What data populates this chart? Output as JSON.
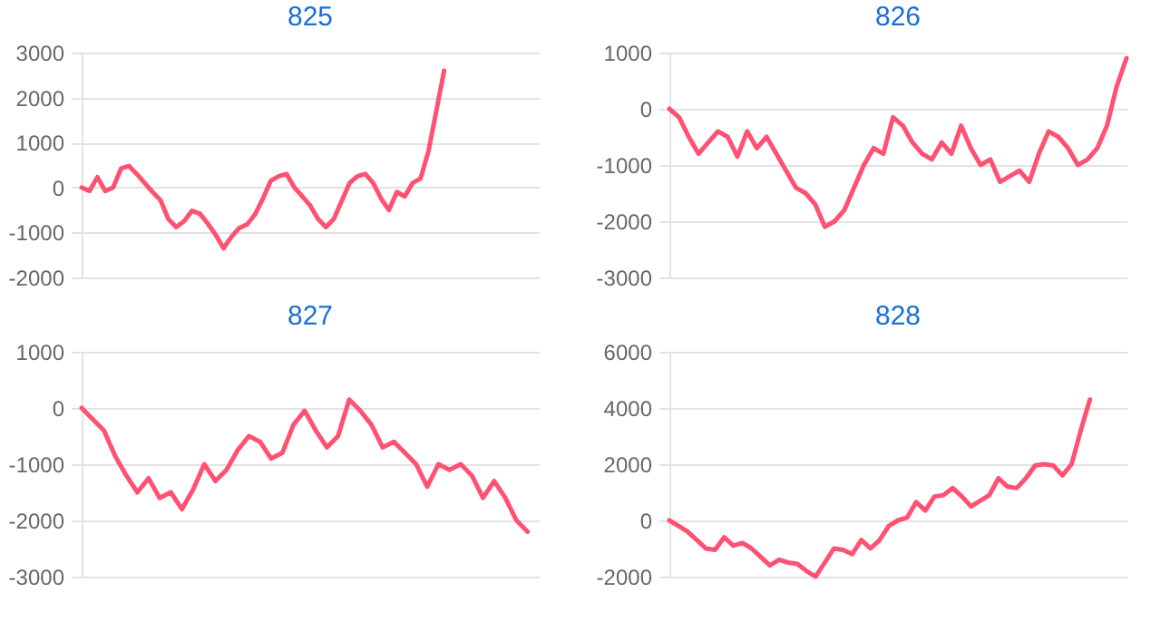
{
  "chart_data": [
    {
      "type": "line",
      "title": "825",
      "categories": [
        null,
        null,
        null,
        null,
        null,
        null,
        null,
        null,
        null,
        null,
        null,
        null,
        null,
        null,
        null,
        null,
        null,
        null,
        null,
        null,
        null,
        null,
        null,
        null,
        null,
        null,
        null,
        null,
        null,
        null,
        null,
        null,
        null,
        null,
        null,
        null,
        null,
        null,
        null,
        null,
        null,
        null,
        null,
        null,
        null,
        null,
        null,
        null,
        null,
        null,
        null,
        null,
        null,
        null,
        null,
        null,
        null,
        null,
        null
      ],
      "series": [
        {
          "color": "#ff5172",
          "values": [
            0,
            -80,
            230,
            -80,
            0,
            420,
            480,
            300,
            100,
            -100,
            -280,
            -700,
            -880,
            -750,
            -520,
            -580,
            -800,
            -1050,
            -1350,
            -1100,
            -900,
            -820,
            -600,
            -250,
            150,
            250,
            300,
            0,
            -200,
            -400,
            -700,
            -880,
            -700,
            -300,
            100,
            250,
            300,
            100,
            -250,
            -500,
            -100,
            -200,
            100,
            200,
            800,
            1700,
            2600,
            null,
            null,
            null,
            null,
            null,
            null,
            null,
            null,
            null,
            null,
            null,
            null
          ]
        }
      ],
      "ylim": [
        -2000,
        3000
      ],
      "yticks": [
        -2000,
        -1000,
        0,
        1000,
        2000,
        3000
      ],
      "grid": "y",
      "tick_labels": "y"
    },
    {
      "type": "line",
      "title": "826",
      "categories": [
        null,
        null,
        null,
        null,
        null,
        null,
        null,
        null,
        null,
        null,
        null,
        null,
        null,
        null,
        null,
        null,
        null,
        null,
        null,
        null,
        null,
        null,
        null,
        null,
        null,
        null,
        null,
        null,
        null,
        null,
        null,
        null,
        null,
        null,
        null,
        null,
        null,
        null,
        null,
        null,
        null,
        null,
        null,
        null,
        null,
        null,
        null,
        null
      ],
      "series": [
        {
          "color": "#ff5172",
          "values": [
            0,
            -150,
            -500,
            -800,
            -600,
            -400,
            -500,
            -850,
            -400,
            -700,
            -500,
            -800,
            -1100,
            -1400,
            -1500,
            -1700,
            -2100,
            -2000,
            -1800,
            -1400,
            -1000,
            -700,
            -800,
            -150,
            -300,
            -600,
            -800,
            -900,
            -600,
            -800,
            -300,
            -700,
            -1000,
            -900,
            -1300,
            -1200,
            -1100,
            -1300,
            -800,
            -400,
            -500,
            -700,
            -1000,
            -900,
            -700,
            -300,
            400,
            900
          ]
        }
      ],
      "ylim": [
        -3000,
        1000
      ],
      "yticks": [
        -3000,
        -2000,
        -1000,
        0,
        1000
      ],
      "grid": "y",
      "tick_labels": "y"
    },
    {
      "type": "line",
      "title": "827",
      "categories": [
        null,
        null,
        null,
        null,
        null,
        null,
        null,
        null,
        null,
        null,
        null,
        null,
        null,
        null,
        null,
        null,
        null,
        null,
        null,
        null,
        null,
        null,
        null,
        null,
        null,
        null,
        null,
        null,
        null,
        null,
        null,
        null,
        null,
        null,
        null,
        null,
        null,
        null,
        null,
        null,
        null,
        null
      ],
      "series": [
        {
          "color": "#ff5172",
          "values": [
            0,
            -200,
            -400,
            -850,
            -1200,
            -1500,
            -1250,
            -1600,
            -1500,
            -1800,
            -1450,
            -1000,
            -1300,
            -1100,
            -750,
            -500,
            -600,
            -900,
            -800,
            -300,
            -50,
            -400,
            -700,
            -500,
            150,
            -50,
            -300,
            -700,
            -600,
            -800,
            -1000,
            -1400,
            -1000,
            -1100,
            -1000,
            -1200,
            -1600,
            -1300,
            -1600,
            -2000,
            -2200,
            null
          ]
        }
      ],
      "ylim": [
        -3000,
        1000
      ],
      "yticks": [
        -3000,
        -2000,
        -1000,
        0,
        1000
      ],
      "grid": "y",
      "tick_labels": "y"
    },
    {
      "type": "line",
      "title": "828",
      "categories": [
        null,
        null,
        null,
        null,
        null,
        null,
        null,
        null,
        null,
        null,
        null,
        null,
        null,
        null,
        null,
        null,
        null,
        null,
        null,
        null,
        null,
        null,
        null,
        null,
        null,
        null,
        null,
        null,
        null,
        null,
        null,
        null,
        null,
        null,
        null,
        null,
        null,
        null,
        null,
        null,
        null,
        null,
        null,
        null,
        null,
        null,
        null,
        null,
        null,
        null,
        null
      ],
      "series": [
        {
          "color": "#ff5172",
          "values": [
            0,
            -200,
            -400,
            -700,
            -1000,
            -1050,
            -600,
            -900,
            -800,
            -1000,
            -1300,
            -1600,
            -1400,
            -1500,
            -1550,
            -1800,
            -2000,
            -1500,
            -1000,
            -1050,
            -1200,
            -700,
            -1000,
            -700,
            -200,
            0,
            100,
            650,
            350,
            850,
            900,
            1150,
            850,
            500,
            700,
            900,
            1500,
            1200,
            1150,
            1500,
            1950,
            2000,
            1950,
            1600,
            2000,
            3200,
            4300,
            null,
            null,
            null,
            null
          ]
        }
      ],
      "ylim": [
        -2000,
        6000
      ],
      "yticks": [
        -2000,
        0,
        2000,
        4000,
        6000
      ],
      "grid": "y",
      "tick_labels": "y"
    }
  ]
}
